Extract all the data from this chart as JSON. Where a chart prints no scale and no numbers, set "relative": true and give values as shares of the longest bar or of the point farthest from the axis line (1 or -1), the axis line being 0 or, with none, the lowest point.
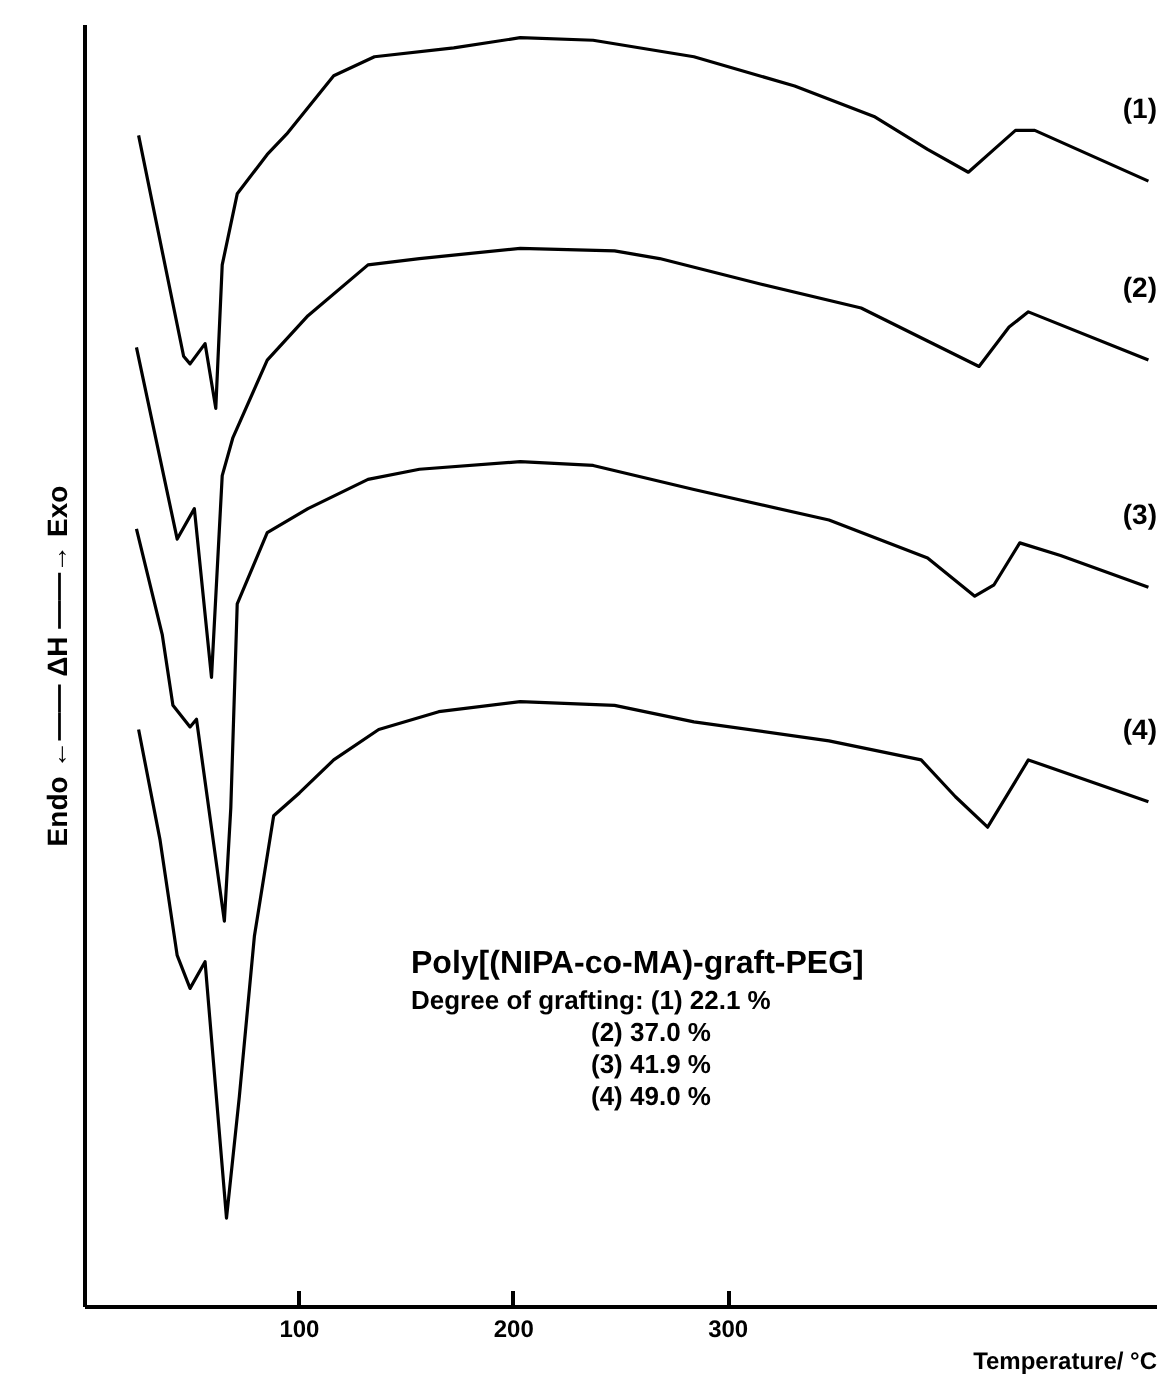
{
  "chart_data": {
    "type": "line",
    "relative": true,
    "xlabel": "Temperature/ °C",
    "ylabel": "Endo ←—— ΔH ——→ Exo",
    "xlim": [
      0,
      500
    ],
    "xticks": [
      100,
      200,
      300
    ],
    "grid": false,
    "legend": false,
    "marker": "none",
    "line_style": "solid",
    "annotations": [
      "Poly[(NIPA-co-MA)-graft-PEG]",
      "Degree of grafting: (1) 22.1 %",
      "(2) 37.0 %",
      "(3) 41.9 %",
      "(4) 49.0 %"
    ],
    "series": [
      {
        "name": "(1)",
        "color": "#000000",
        "x": [
          25,
          46,
          49,
          56,
          61,
          64,
          71,
          85,
          94,
          116,
          135,
          172,
          203,
          237,
          284,
          331,
          368,
          393,
          412,
          424,
          434,
          443,
          496
        ],
        "values": [
          0.923,
          0.749,
          0.743,
          0.759,
          0.708,
          0.821,
          0.877,
          0.908,
          0.924,
          0.97,
          0.985,
          0.992,
          1.0,
          0.998,
          0.985,
          0.962,
          0.938,
          0.912,
          0.894,
          0.912,
          0.927,
          0.927,
          0.887
        ]
      },
      {
        "name": "(2)",
        "color": "#000000",
        "x": [
          24,
          43,
          51,
          59,
          64,
          69,
          85,
          104,
          132,
          156,
          203,
          247,
          268,
          315,
          362,
          393,
          417,
          431,
          440,
          496
        ],
        "values": [
          0.756,
          0.605,
          0.629,
          0.496,
          0.655,
          0.685,
          0.746,
          0.781,
          0.821,
          0.826,
          0.834,
          0.832,
          0.826,
          0.806,
          0.787,
          0.761,
          0.741,
          0.772,
          0.784,
          0.746
        ]
      },
      {
        "name": "(3)",
        "color": "#000000",
        "x": [
          24,
          36,
          41,
          49,
          52,
          65,
          68,
          71,
          85,
          104,
          132,
          156,
          203,
          237,
          284,
          347,
          393,
          415,
          424,
          436,
          455,
          496
        ],
        "values": [
          0.613,
          0.53,
          0.474,
          0.457,
          0.463,
          0.304,
          0.393,
          0.554,
          0.61,
          0.629,
          0.652,
          0.66,
          0.666,
          0.663,
          0.644,
          0.62,
          0.59,
          0.56,
          0.569,
          0.602,
          0.592,
          0.567
        ]
      },
      {
        "name": "(4)",
        "color": "#000000",
        "x": [
          25,
          35,
          43,
          49,
          56,
          66,
          72,
          79,
          88,
          100,
          116,
          137,
          165,
          203,
          247,
          284,
          347,
          390,
          406,
          421,
          440,
          496
        ],
        "values": [
          0.455,
          0.368,
          0.277,
          0.251,
          0.272,
          0.07,
          0.166,
          0.292,
          0.387,
          0.405,
          0.431,
          0.455,
          0.469,
          0.477,
          0.474,
          0.461,
          0.446,
          0.431,
          0.402,
          0.378,
          0.431,
          0.398
        ]
      }
    ]
  }
}
